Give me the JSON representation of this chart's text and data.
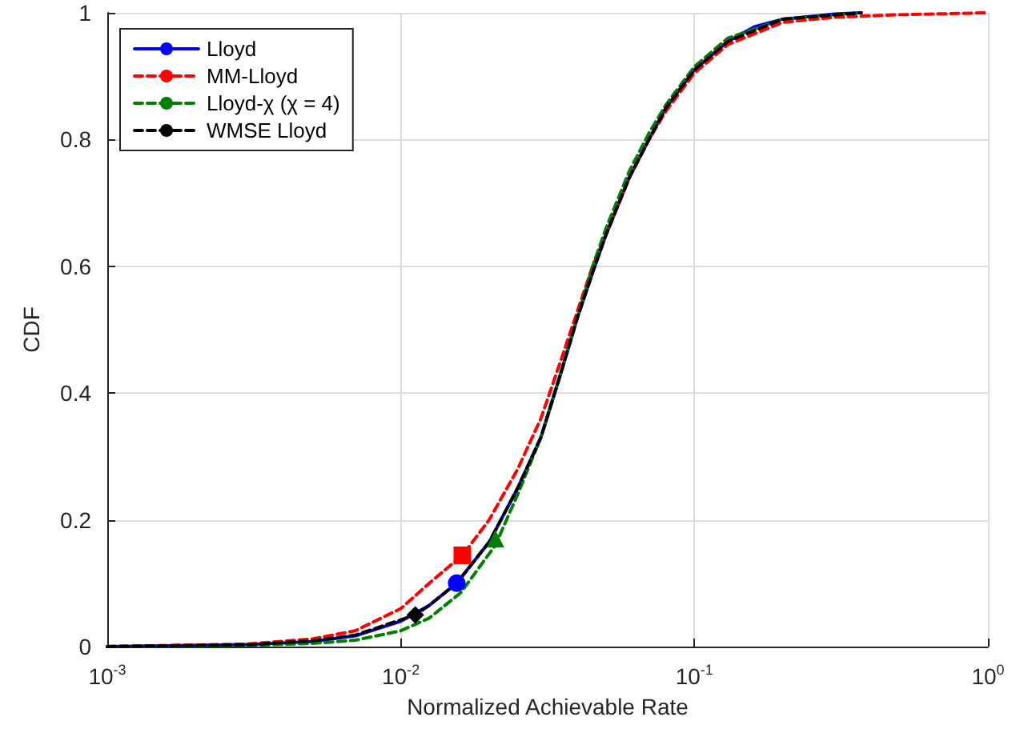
{
  "chart_data": {
    "type": "line",
    "xlabel": "Normalized Achievable Rate",
    "ylabel": "CDF",
    "log": "x",
    "xlim": [
      0.001,
      1
    ],
    "xticks": [
      {
        "value": 0.001,
        "label": "10$^{-3}$"
      },
      {
        "value": 0.01,
        "label": "10$^{-2}$"
      },
      {
        "value": 0.1,
        "label": "10$^{-1}$"
      },
      {
        "value": 1,
        "label": "10$^{0}$"
      }
    ],
    "ylim": [
      0,
      1
    ],
    "yticks": [
      0,
      0.2,
      0.4,
      0.6,
      0.8,
      1
    ],
    "grid": true,
    "legend": "top left",
    "series": [
      {
        "name": "Lloyd",
        "color": "#0000ff",
        "line_style": "solid",
        "x": [
          0.001,
          0.003,
          0.005,
          0.007,
          0.01,
          0.0125,
          0.0155,
          0.02,
          0.025,
          0.03,
          0.035,
          0.04,
          0.045,
          0.05,
          0.06,
          0.07,
          0.08,
          0.1,
          0.13,
          0.16,
          0.2,
          0.3,
          0.37
        ],
        "values": [
          0,
          0.003,
          0.008,
          0.017,
          0.04,
          0.065,
          0.1,
          0.165,
          0.25,
          0.33,
          0.43,
          0.52,
          0.59,
          0.65,
          0.74,
          0.8,
          0.85,
          0.91,
          0.955,
          0.978,
          0.99,
          0.998,
          1
        ]
      },
      {
        "name": "MM-Lloyd",
        "color": "#ff0000",
        "line_style": "dashed",
        "x": [
          0.001,
          0.003,
          0.005,
          0.007,
          0.01,
          0.0125,
          0.0162,
          0.02,
          0.025,
          0.03,
          0.035,
          0.04,
          0.045,
          0.05,
          0.06,
          0.07,
          0.08,
          0.1,
          0.13,
          0.2,
          0.3,
          0.5,
          1
        ],
        "values": [
          0,
          0.004,
          0.012,
          0.025,
          0.06,
          0.1,
          0.144,
          0.2,
          0.28,
          0.36,
          0.45,
          0.53,
          0.6,
          0.65,
          0.74,
          0.8,
          0.845,
          0.905,
          0.95,
          0.985,
          0.993,
          0.997,
          1
        ]
      },
      {
        "name": "Lloyd-χ (χ = 4)",
        "color": "#008000",
        "line_style": "dashed",
        "x": [
          0.001,
          0.003,
          0.005,
          0.007,
          0.01,
          0.0125,
          0.016,
          0.021,
          0.025,
          0.03,
          0.035,
          0.04,
          0.045,
          0.05,
          0.06,
          0.07,
          0.08,
          0.1,
          0.13,
          0.2,
          0.37
        ],
        "values": [
          0,
          0.002,
          0.005,
          0.01,
          0.025,
          0.045,
          0.085,
          0.16,
          0.24,
          0.33,
          0.43,
          0.52,
          0.6,
          0.66,
          0.75,
          0.81,
          0.855,
          0.915,
          0.96,
          0.99,
          1
        ]
      },
      {
        "name": "WMSE Lloyd",
        "color": "#000000",
        "line_style": "dashed",
        "x": [
          0.001,
          0.003,
          0.005,
          0.007,
          0.0112,
          0.0125,
          0.0155,
          0.02,
          0.025,
          0.03,
          0.035,
          0.04,
          0.045,
          0.05,
          0.06,
          0.07,
          0.08,
          0.1,
          0.13,
          0.2,
          0.37
        ],
        "values": [
          0,
          0.003,
          0.009,
          0.018,
          0.05,
          0.065,
          0.1,
          0.165,
          0.25,
          0.33,
          0.43,
          0.52,
          0.59,
          0.65,
          0.74,
          0.8,
          0.85,
          0.91,
          0.955,
          0.99,
          1
        ]
      },
      {
        "type": "scatter",
        "color": "#0000ff",
        "marker": "circle",
        "x": [
          0.0155
        ],
        "values": [
          0.1
        ]
      },
      {
        "type": "scatter",
        "color": "#ff0000",
        "marker": "square",
        "x": [
          0.0162
        ],
        "values": [
          0.144
        ]
      },
      {
        "type": "scatter",
        "color": "#008000",
        "marker": "triangle",
        "x": [
          0.021
        ],
        "values": [
          0.17
        ]
      },
      {
        "type": "scatter",
        "color": "#000000",
        "marker": "diamond",
        "x": [
          0.0112
        ],
        "values": [
          0.05
        ]
      }
    ]
  }
}
